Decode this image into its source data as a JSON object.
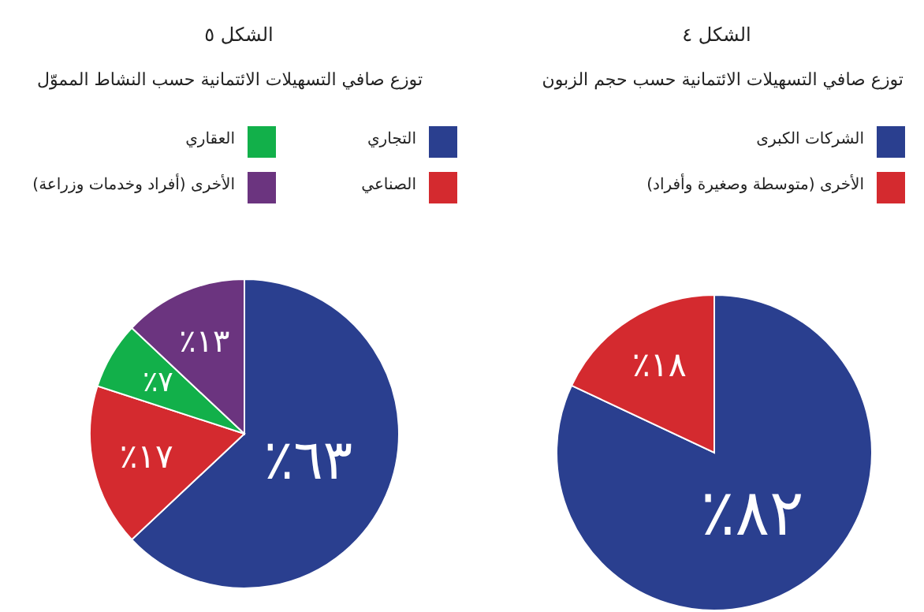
{
  "chart_data": [
    {
      "type": "pie",
      "title": "الشكل ٤",
      "subtitle": "توزع صافي التسهيلات الائتمانية حسب حجم الزبون",
      "categories": [
        "الشركات الكبرى",
        "الأخرى (متوسطة وصغيرة وأفراد)"
      ],
      "values": [
        82,
        18
      ],
      "colors": [
        "#2a3f8f",
        "#d42a2f"
      ],
      "value_labels": [
        "٨٢٪",
        "١٨٪"
      ],
      "legend": "top right"
    },
    {
      "type": "pie",
      "title": "الشكل ٥",
      "subtitle": "توزع صافي التسهيلات الائتمانية حسب  النشاط المموّل",
      "categories": [
        "التجاري",
        "الصناعي",
        "العقاري",
        "الأخرى (أفراد وخدمات وزراعة)"
      ],
      "values": [
        63,
        17,
        7,
        13
      ],
      "colors": [
        "#2a3f8f",
        "#d42a2f",
        "#12b04a",
        "#6b347f"
      ],
      "value_labels": [
        "٦٣٪",
        "١٧٪",
        "٧٪",
        "١٣٪"
      ],
      "legend": "top"
    }
  ]
}
